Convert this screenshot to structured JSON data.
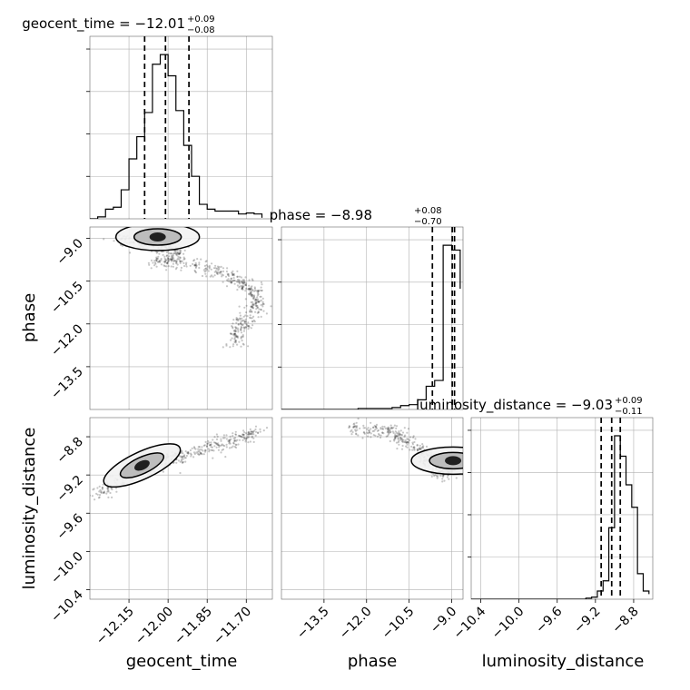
{
  "chart_data": {
    "type": "corner",
    "parameters": [
      "geocent_time",
      "phase",
      "luminosity_distance"
    ],
    "axes": {
      "geocent_time": {
        "label": "geocent_time",
        "range": [
          -12.3,
          -11.6
        ],
        "ticks": [
          -12.15,
          -12.0,
          -11.85,
          -11.7
        ],
        "tick_labels": [
          "−12.15",
          "−12.00",
          "−11.85",
          "−11.70"
        ]
      },
      "phase": {
        "label": "phase",
        "range": [
          -15.0,
          -8.6
        ],
        "ticks": [
          -13.5,
          -12.0,
          -10.5,
          -9.0
        ],
        "tick_labels": [
          "−13.5",
          "−12.0",
          "−10.5",
          "−9.0"
        ]
      },
      "luminosity_distance": {
        "label": "luminosity_distance",
        "range": [
          -10.5,
          -8.6
        ],
        "ticks": [
          -10.4,
          -10.0,
          -9.6,
          -9.2,
          -8.8
        ],
        "tick_labels": [
          "−10.4",
          "−10.0",
          "−9.6",
          "−9.2",
          "−8.8"
        ]
      }
    },
    "marginals": [
      {
        "parameter": "geocent_time",
        "title": "geocent_time = −12.01",
        "plus": "+0.09",
        "minus": "−0.08",
        "quantiles": [
          -12.09,
          -12.01,
          -11.92
        ],
        "bins": [
          -12.3,
          -12.27,
          -12.24,
          -12.21,
          -12.18,
          -12.15,
          -12.12,
          -12.09,
          -12.06,
          -12.03,
          -12.0,
          -11.97,
          -11.94,
          -11.91,
          -11.88,
          -11.85,
          -11.82,
          -11.79,
          -11.76,
          -11.73,
          -11.7,
          -11.67,
          -11.64
        ],
        "counts": [
          0,
          2,
          10,
          12,
          30,
          62,
          85,
          110,
          160,
          170,
          148,
          112,
          76,
          44,
          15,
          10,
          8,
          8,
          8,
          5,
          6,
          5,
          1
        ]
      },
      {
        "parameter": "phase",
        "title": "phase = −8.98",
        "plus": "+0.08",
        "minus": "−0.70",
        "quantiles": [
          -9.68,
          -8.98,
          -8.9
        ],
        "bins": [
          -15.0,
          -14.7,
          -14.4,
          -14.1,
          -13.8,
          -13.5,
          -13.2,
          -12.9,
          -12.6,
          -12.3,
          -12.0,
          -11.7,
          -11.4,
          -11.1,
          -10.8,
          -10.5,
          -10.2,
          -9.9,
          -9.6,
          -9.3,
          -9.0,
          -8.7
        ],
        "counts": [
          0,
          0,
          0,
          0,
          0,
          0,
          0,
          0,
          0,
          1,
          1,
          1,
          1,
          2,
          4,
          5,
          10,
          24,
          30,
          170,
          165,
          125
        ]
      },
      {
        "parameter": "luminosity_distance",
        "title": "luminosity_distance = −9.03",
        "plus": "+0.09",
        "minus": "−0.11",
        "quantiles": [
          -9.14,
          -9.03,
          -8.94
        ],
        "bins": [
          -10.5,
          -10.44,
          -10.38,
          -10.32,
          -10.26,
          -10.2,
          -10.14,
          -10.08,
          -10.02,
          -9.96,
          -9.9,
          -9.84,
          -9.78,
          -9.72,
          -9.66,
          -9.6,
          -9.54,
          -9.48,
          -9.42,
          -9.36,
          -9.3,
          -9.24,
          -9.18,
          -9.12,
          -9.06,
          -9.0,
          -8.94,
          -8.88,
          -8.82,
          -8.76,
          -8.7,
          -8.64
        ],
        "counts": [
          0,
          0,
          0,
          0,
          0,
          0,
          0,
          0,
          0,
          0,
          0,
          0,
          0,
          0,
          0,
          0,
          0,
          0,
          0,
          0,
          1,
          2,
          8,
          18,
          70,
          160,
          140,
          112,
          90,
          25,
          8,
          5
        ]
      }
    ],
    "joint_panels": [
      {
        "x": "geocent_time",
        "y": "phase",
        "peak": [
          -12.04,
          -8.95
        ],
        "cloud": [
          [
            -12.2,
            -9.0
          ],
          [
            -12.1,
            -9.15
          ],
          [
            -12.0,
            -9.25
          ],
          [
            -11.95,
            -9.6
          ],
          [
            -12.05,
            -9.8
          ],
          [
            -11.9,
            -9.9
          ],
          [
            -11.8,
            -10.2
          ],
          [
            -11.72,
            -10.5
          ],
          [
            -11.68,
            -10.8
          ],
          [
            -11.65,
            -11.3
          ],
          [
            -11.7,
            -11.8
          ],
          [
            -11.73,
            -12.2
          ],
          [
            -11.76,
            -12.7
          ]
        ]
      },
      {
        "x": "geocent_time",
        "y": "luminosity_distance",
        "peak": [
          -12.1,
          -9.1
        ],
        "cloud": [
          [
            -12.28,
            -9.4
          ],
          [
            -12.2,
            -9.28
          ],
          [
            -12.12,
            -9.17
          ],
          [
            -12.04,
            -9.08
          ],
          [
            -11.96,
            -9.0
          ],
          [
            -11.88,
            -8.95
          ],
          [
            -11.8,
            -8.88
          ],
          [
            -11.72,
            -8.82
          ],
          [
            -11.65,
            -8.75
          ]
        ]
      },
      {
        "x": "phase",
        "y": "luminosity_distance",
        "peak": [
          -8.95,
          -9.05
        ],
        "cloud": [
          [
            -12.5,
            -8.72
          ],
          [
            -11.7,
            -8.74
          ],
          [
            -11.0,
            -8.76
          ],
          [
            -10.5,
            -8.86
          ],
          [
            -10.0,
            -8.98
          ],
          [
            -9.6,
            -9.1
          ],
          [
            -9.3,
            -9.2
          ],
          [
            -9.0,
            -9.08
          ]
        ]
      }
    ]
  }
}
